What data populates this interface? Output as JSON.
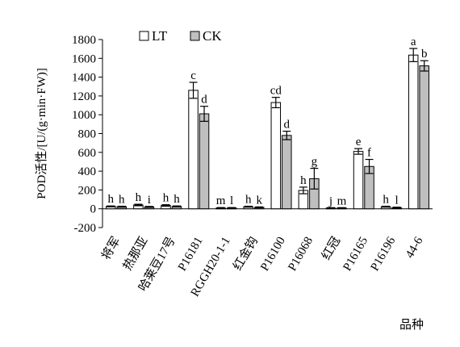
{
  "chart_data": {
    "type": "bar",
    "title": "",
    "xlabel": "品种",
    "ylabel": "POD活性/[U/(g·min·FW)]",
    "ylim": [
      -200,
      1800
    ],
    "yticks": [
      -200,
      0,
      200,
      400,
      600,
      800,
      1000,
      1200,
      1400,
      1600,
      1800
    ],
    "ytick_labels": [
      "-200",
      "0",
      "200",
      "400",
      "600",
      "800",
      "1000",
      "1200",
      "1400",
      "1600",
      "1800"
    ],
    "grid": false,
    "legend_position": "top-left",
    "categories": [
      "将军",
      "热那亚",
      "哈莱豆17号",
      "P16181",
      "RGGH20-1-1",
      "红金钩",
      "P16100",
      "P16068",
      "红冠",
      "P16165",
      "P16196",
      "44-6"
    ],
    "series": [
      {
        "name": "LT",
        "color": "#ffffff",
        "values": [
          25,
          40,
          35,
          1260,
          8,
          22,
          1130,
          195,
          8,
          610,
          22,
          1635
        ],
        "errors": [
          5,
          8,
          8,
          85,
          5,
          5,
          55,
          35,
          4,
          30,
          5,
          70
        ],
        "significance": [
          "h",
          "h",
          "h",
          "c",
          "m",
          "h",
          "cd",
          "h",
          "j",
          "e",
          "h",
          "a"
        ]
      },
      {
        "name": "CK",
        "color": "#bfbfbf",
        "values": [
          22,
          20,
          25,
          1010,
          8,
          15,
          780,
          320,
          8,
          450,
          12,
          1520
        ],
        "errors": [
          5,
          5,
          5,
          80,
          5,
          5,
          45,
          110,
          4,
          75,
          5,
          55
        ],
        "significance": [
          "h",
          "i",
          "h",
          "d",
          "l",
          "k",
          "d",
          "g",
          "m",
          "f",
          "l",
          "b"
        ]
      }
    ]
  }
}
